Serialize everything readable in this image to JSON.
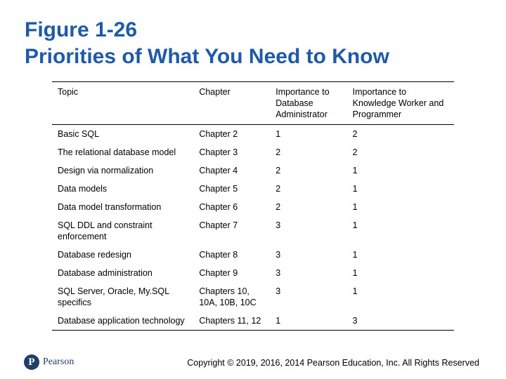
{
  "title": {
    "line1": "Figure 1-26",
    "line2": "Priorities of What You Need to Know"
  },
  "table": {
    "headers": [
      "Topic",
      "Chapter",
      "Importance to Database Administrator",
      "Importance to Knowledge Worker and Programmer"
    ],
    "rows": [
      [
        "Basic SQL",
        "Chapter 2",
        "1",
        "2"
      ],
      [
        "The relational database model",
        "Chapter 3",
        "2",
        "2"
      ],
      [
        "Design via normalization",
        "Chapter 4",
        "2",
        "1"
      ],
      [
        "Data models",
        "Chapter 5",
        "2",
        "1"
      ],
      [
        "Data model transformation",
        "Chapter 6",
        "2",
        "1"
      ],
      [
        "SQL DDL and constraint enforcement",
        "Chapter 7",
        "3",
        "1"
      ],
      [
        "Database redesign",
        "Chapter 8",
        "3",
        "1"
      ],
      [
        "Database administration",
        "Chapter 9",
        "3",
        "1"
      ],
      [
        "SQL Server, Oracle, My.SQL specifics",
        "Chapters 10, 10A, 10B, 10C",
        "3",
        "1"
      ],
      [
        "Database application technology",
        "Chapters 11, 12",
        "1",
        "3"
      ]
    ]
  },
  "footer": {
    "logo_mark": "P",
    "logo_text": "Pearson",
    "copyright": "Copyright © 2019, 2016, 2014 Pearson Education, Inc. All Rights Reserved"
  },
  "colors": {
    "title": "#1e5aa8",
    "logo": "#1f3f68"
  }
}
